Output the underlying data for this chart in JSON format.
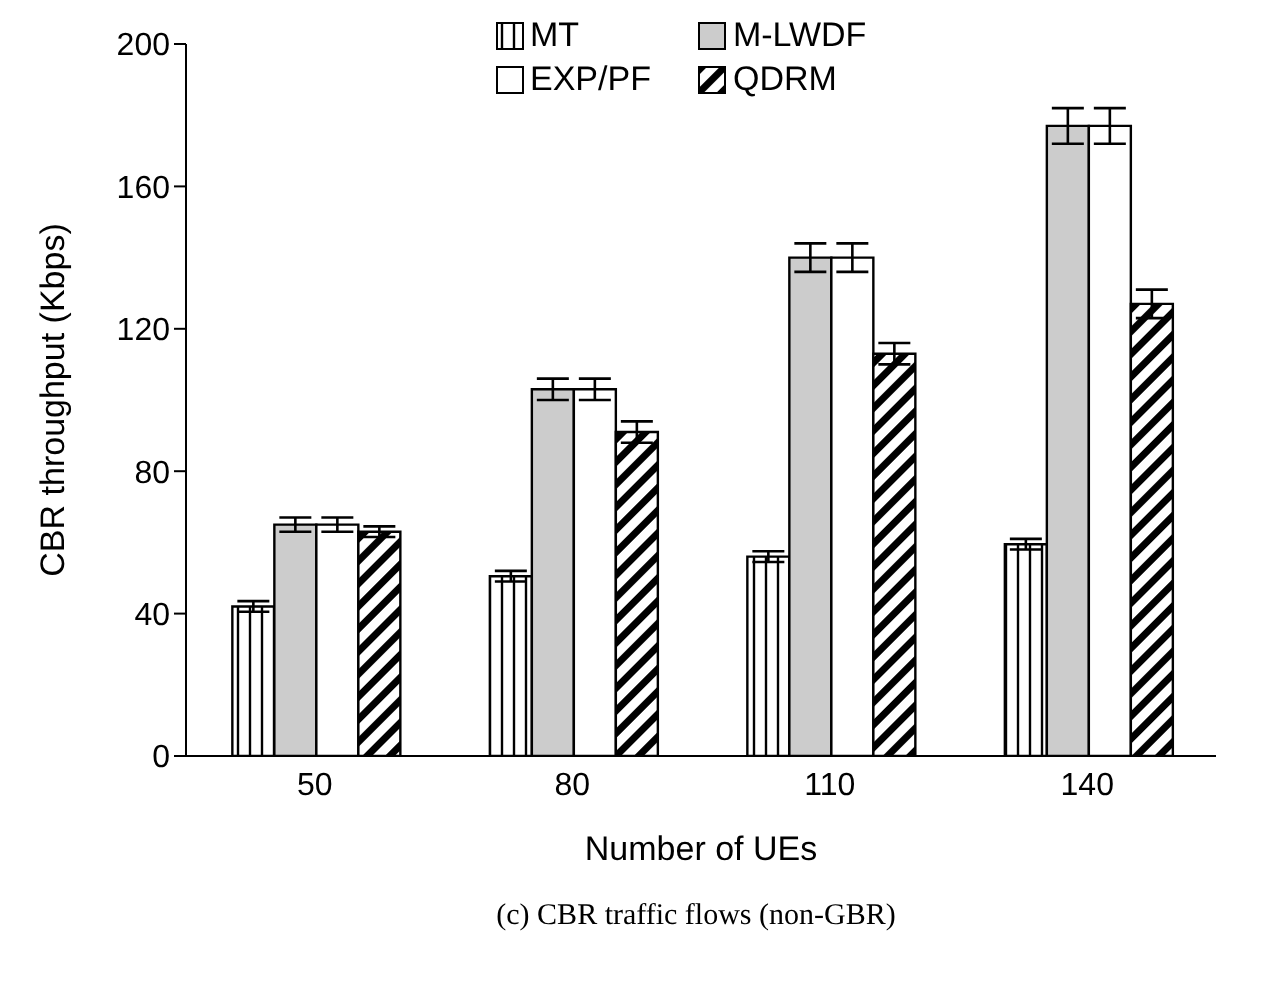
{
  "chart_data": {
    "type": "bar",
    "xlabel": "Number of UEs",
    "ylabel": "CBR throughput (Kbps)",
    "categories": [
      "50",
      "80",
      "110",
      "140"
    ],
    "series": [
      {
        "name": "MT",
        "color": "#000000",
        "values": [
          42,
          50.5,
          56,
          59.5
        ],
        "errors": [
          1.5,
          1.5,
          1.5,
          1.5
        ]
      },
      {
        "name": "M-LWDF",
        "color": "#cccccc",
        "values": [
          65,
          103,
          140,
          177
        ],
        "errors": [
          2,
          3,
          4,
          5
        ]
      },
      {
        "name": "EXP/PF",
        "color": "#ffffff",
        "values": [
          65,
          103,
          140,
          177
        ],
        "errors": [
          2,
          3,
          4,
          5
        ]
      },
      {
        "name": "QDRM",
        "color": "#000000",
        "values": [
          63,
          91,
          113,
          127
        ],
        "errors": [
          1.5,
          3,
          3,
          4
        ]
      }
    ],
    "ylim": [
      0,
      200
    ],
    "yticks": [
      0,
      40,
      80,
      120,
      160,
      200
    ],
    "legend": "top",
    "annotations": [
      "(c) CBR traffic flows (non-GBR)"
    ]
  }
}
